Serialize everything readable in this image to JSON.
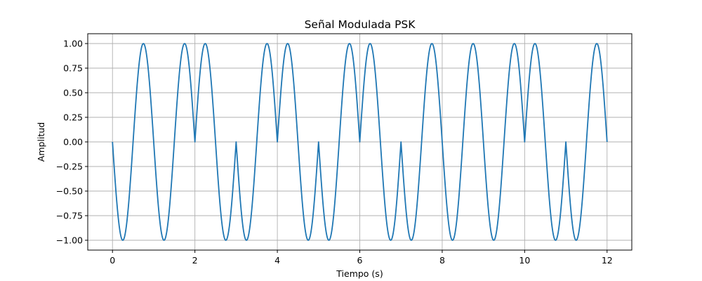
{
  "chart_data": {
    "type": "line",
    "title": "Señal Modulada PSK",
    "xlabel": "Tiempo (s)",
    "ylabel": "Amplitud",
    "xlim": [
      -0.6,
      12.6
    ],
    "ylim": [
      -1.1,
      1.1
    ],
    "xticks": [
      0,
      2,
      4,
      6,
      8,
      10,
      12
    ],
    "xtick_labels": [
      "0",
      "2",
      "4",
      "6",
      "8",
      "10",
      "12"
    ],
    "yticks": [
      -1.0,
      -0.75,
      -0.5,
      -0.25,
      0.0,
      0.25,
      0.5,
      0.75,
      1.0
    ],
    "ytick_labels": [
      "−1.00",
      "−0.75",
      "−0.50",
      "−0.25",
      "0.00",
      "0.25",
      "0.50",
      "0.75",
      "1.00"
    ],
    "grid": true,
    "carrier_frequency_hz": 1,
    "bit_duration_s": 1,
    "series": [
      {
        "color": "#1f77b4",
        "bits": [
          0,
          0,
          1,
          0,
          1,
          0,
          1,
          0,
          0,
          0,
          1,
          0
        ],
        "formula": "sin(2*pi*t + pi) for bit 0, sin(2*pi*t) for bit 1",
        "t_range": [
          0,
          12
        ]
      }
    ]
  }
}
